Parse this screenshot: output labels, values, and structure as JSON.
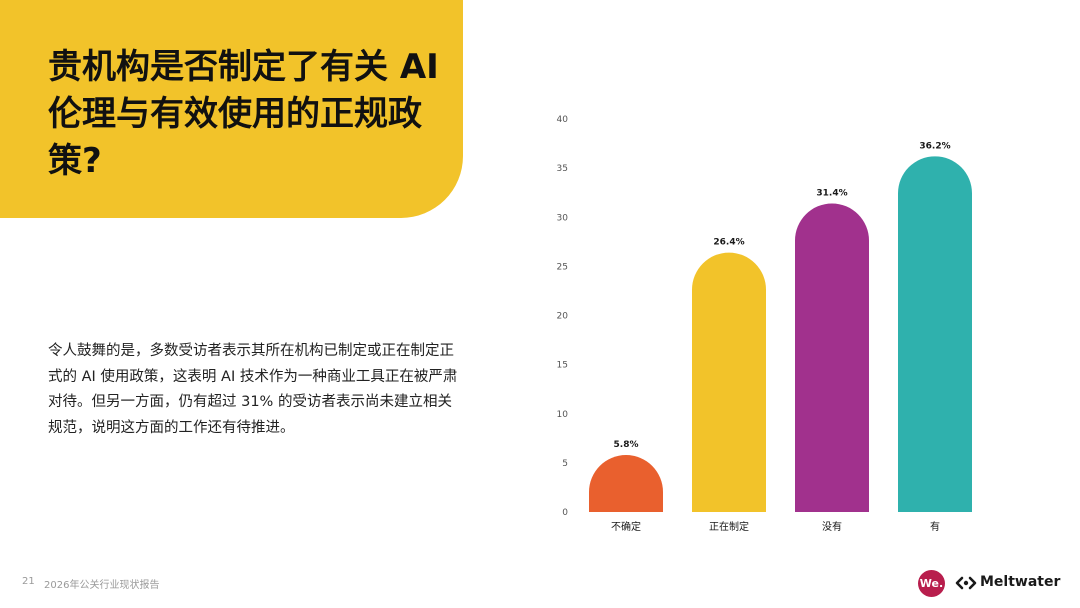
{
  "title": "贵机构是否制定了有关 AI 伦理与有效使用的正规政策?",
  "body": "令人鼓舞的是，多数受访者表示其所在机构已制定或正在制定正式的 AI 使用政策，这表明 AI 技术作为一种商业工具正在被严肃对待。但另一方面，仍有超过 31% 的受访者表示尚未建立相关规范，说明这方面的工作还有待推进。",
  "footer": {
    "page_number": "21",
    "report_title": "2026年公关行业现状报告",
    "we_logo": "We.",
    "brand": "Meltwater"
  },
  "colors": {
    "accent_yellow": "#f2c32a",
    "brand": "#b81e4d"
  },
  "chart_data": {
    "type": "bar",
    "categories": [
      "不确定",
      "正在制定",
      "没有",
      "有"
    ],
    "values": [
      5.8,
      26.4,
      31.4,
      36.2
    ],
    "data_labels": [
      "5.8%",
      "26.4%",
      "31.4%",
      "36.2%"
    ],
    "colors": [
      "#e9602e",
      "#f2c32a",
      "#a1318d",
      "#2fb1ad"
    ],
    "ylim": [
      0,
      40
    ],
    "yticks": [
      0,
      5,
      10,
      15,
      20,
      25,
      30,
      35,
      40
    ],
    "grid": false,
    "legend": false,
    "bar_shape": "rounded-top"
  }
}
